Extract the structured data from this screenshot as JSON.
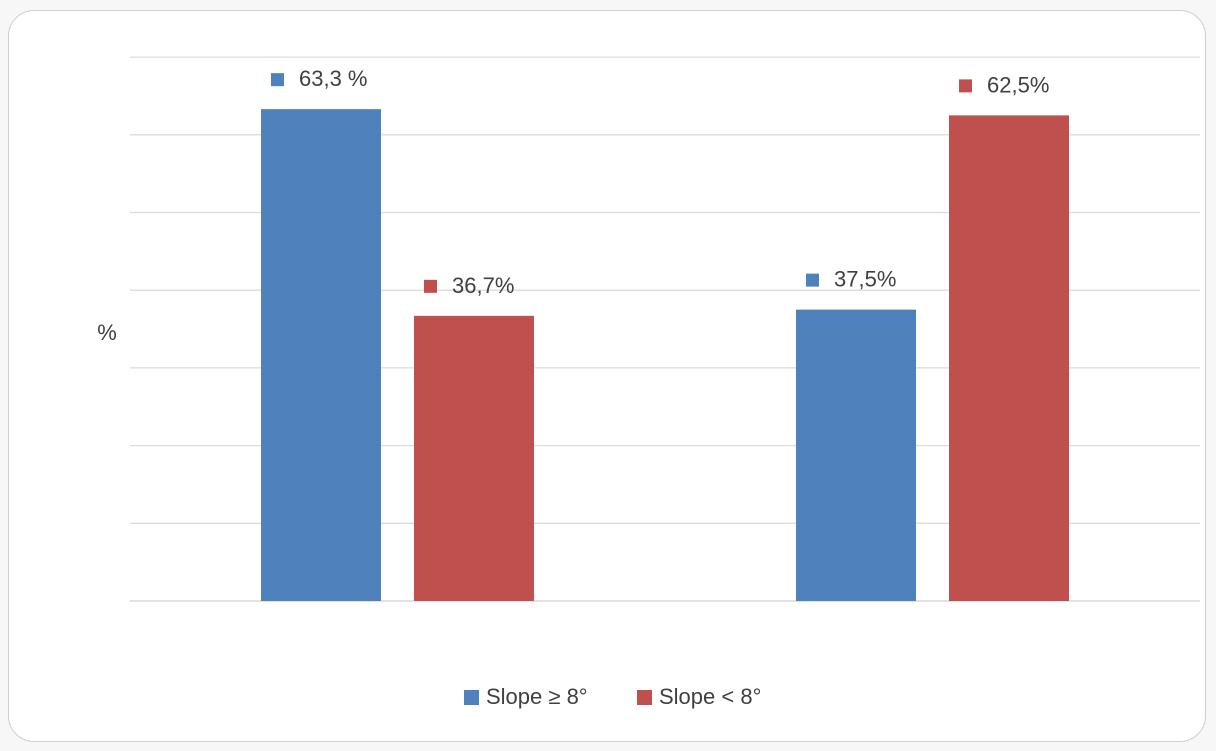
{
  "chart_data": {
    "type": "bar",
    "title": "",
    "xlabel": "",
    "ylabel": "%",
    "ylim": [
      0,
      70
    ],
    "grid": true,
    "legend_position": "bottom",
    "categories": [
      "",
      ""
    ],
    "series": [
      {
        "name": "Slope ≥ 8°",
        "color": "#4f81bd",
        "values": [
          63.3,
          37.5
        ],
        "labels": [
          "63,3 %",
          "37,5%"
        ]
      },
      {
        "name": "Slope < 8°",
        "color": "#c0504d",
        "values": [
          36.7,
          62.5
        ],
        "labels": [
          "36,7%",
          "62,5%"
        ]
      }
    ]
  }
}
